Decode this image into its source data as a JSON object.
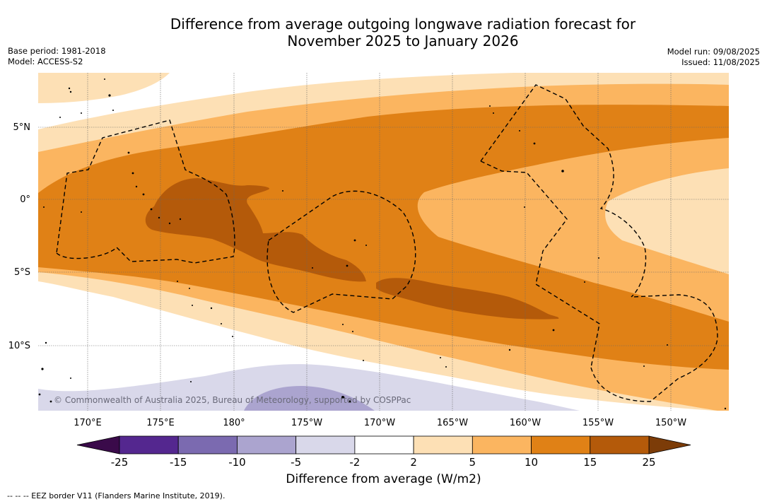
{
  "title_line1": "Difference from average outgoing longwave radiation forecast for",
  "title_line2": "November 2025 to January 2026",
  "meta_left": {
    "base_period": "Base period: 1981-2018",
    "model": "Model: ACCESS-S2"
  },
  "meta_right": {
    "model_run": "Model run: 09/08/2025",
    "issued": "Issued: 11/08/2025"
  },
  "map": {
    "lat_labels": [
      "5°N",
      "0°",
      "5°S",
      "10°S"
    ],
    "lon_labels": [
      "170°E",
      "175°E",
      "180°",
      "175°W",
      "170°W",
      "165°W",
      "160°W",
      "155°W",
      "150°W"
    ],
    "copyright": "© Commonwealth of Australia 2025, Bureau of Meteorology, supported by COSPPac"
  },
  "colorbar": {
    "title": "Difference from average (W/m2)",
    "ticks": [
      "-25",
      "-15",
      "-10",
      "-5",
      "-2",
      "2",
      "5",
      "10",
      "15",
      "25"
    ],
    "colors": {
      "below_min": "#3a0a4a",
      "-25_-15": "#54278f",
      "-15_-10": "#7b6ab0",
      "-10_-5": "#aba4cf",
      "-5_-2": "#d9d8ea",
      "-2_2": "#ffffff",
      "2_5": "#fde0b5",
      "5_10": "#fbb560",
      "10_15": "#e08116",
      "15_25": "#b45a0a",
      "above_max": "#7c3c08"
    }
  },
  "legend_note": "-- -- -- EEZ border V11 (Flanders Marine Institute, 2019)."
}
